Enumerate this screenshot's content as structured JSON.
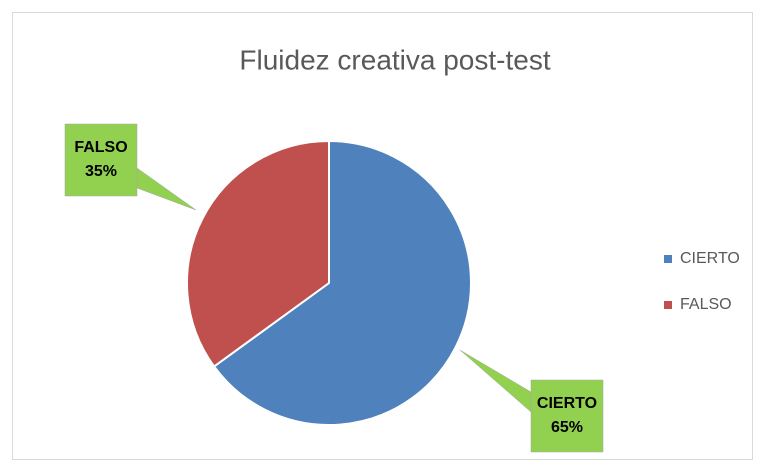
{
  "chart_data": {
    "type": "pie",
    "title": "Fluidez creativa post-test",
    "categories": [
      "CIERTO",
      "FALSO"
    ],
    "values": [
      65,
      35
    ],
    "value_labels": [
      "65%",
      "35%"
    ],
    "colors": [
      "#4f81bd",
      "#c0504d"
    ],
    "label_color": "#92d050",
    "legend": "right"
  }
}
